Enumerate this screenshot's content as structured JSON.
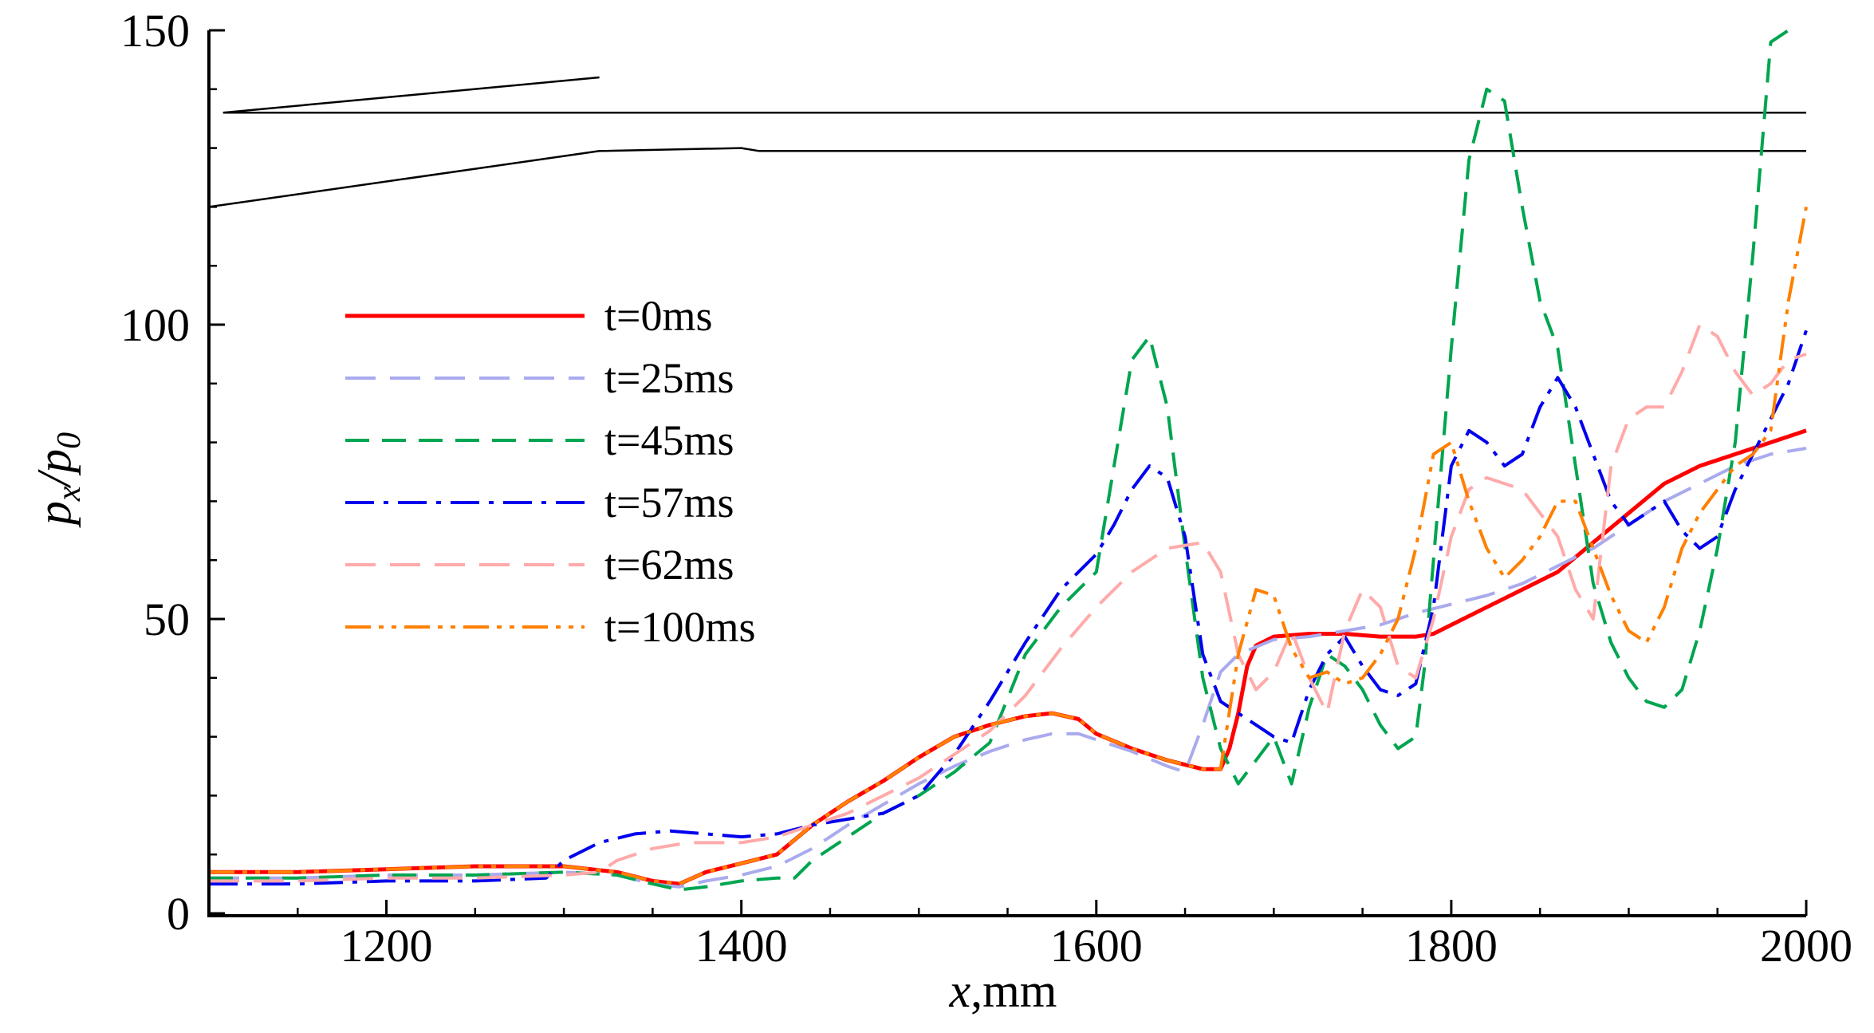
{
  "chart_data": {
    "type": "line",
    "title": "",
    "xlabel": {
      "var": "x",
      "unit": ",mm"
    },
    "ylabel": {
      "main": "p",
      "sub1": "x",
      "sep": "/",
      "sub2": "0"
    },
    "xlim": [
      1100,
      2000
    ],
    "ylim": [
      0,
      150
    ],
    "xticks": [
      1200,
      1400,
      1600,
      1800,
      2000
    ],
    "yticks": [
      0,
      50,
      100,
      150
    ],
    "grid": false,
    "legend_position": "left-center",
    "geometry_outline": [
      {
        "name": "outline-line-1",
        "color": "#000000",
        "x": [
          1108,
          1320
        ],
        "y": [
          136,
          142
        ]
      },
      {
        "name": "outline-line-2",
        "color": "#000000",
        "x": [
          1108,
          2000
        ],
        "y": [
          136,
          136
        ]
      },
      {
        "name": "outline-line-3",
        "color": "#000000",
        "x": [
          1100,
          1320,
          1400,
          1410,
          2000
        ],
        "y": [
          120,
          129.5,
          130,
          129.5,
          129.5
        ]
      }
    ],
    "series": [
      {
        "name": "t=0ms",
        "color": "#ff0000",
        "dash": "solid",
        "width": 5,
        "x": [
          1100,
          1150,
          1200,
          1250,
          1300,
          1330,
          1350,
          1365,
          1380,
          1400,
          1420,
          1440,
          1460,
          1480,
          1500,
          1520,
          1540,
          1560,
          1575,
          1590,
          1600,
          1620,
          1640,
          1660,
          1670,
          1675,
          1680,
          1685,
          1690,
          1700,
          1720,
          1740,
          1760,
          1780,
          1790,
          1800,
          1820,
          1840,
          1860,
          1880,
          1900,
          1920,
          1940,
          1960,
          1980,
          2000
        ],
        "y": [
          7,
          7,
          7.5,
          8,
          8,
          7,
          5.5,
          5,
          7,
          8.5,
          10,
          15,
          19,
          22.5,
          26.5,
          30,
          32,
          33.5,
          34,
          33,
          30.5,
          28,
          26,
          24.5,
          24.5,
          28,
          34,
          42,
          45.5,
          47,
          47.5,
          47.5,
          47,
          47,
          47.5,
          49,
          52,
          55,
          58,
          63,
          68,
          73,
          76,
          78,
          80,
          82
        ]
      },
      {
        "name": "t=25ms",
        "color": "#aaaaee",
        "dash": "38,18",
        "width": 4,
        "x": [
          1100,
          1150,
          1200,
          1250,
          1300,
          1330,
          1350,
          1365,
          1380,
          1400,
          1420,
          1440,
          1460,
          1480,
          1500,
          1520,
          1540,
          1560,
          1575,
          1590,
          1600,
          1620,
          1640,
          1650,
          1660,
          1670,
          1680,
          1700,
          1720,
          1740,
          1760,
          1780,
          1800,
          1820,
          1840,
          1860,
          1880,
          1900,
          1920,
          1940,
          1960,
          1980,
          2000
        ],
        "y": [
          6,
          6,
          6.5,
          6.5,
          7,
          6.5,
          5,
          4.5,
          5.5,
          6.5,
          8,
          11,
          15,
          18.5,
          22,
          25,
          27.5,
          29.5,
          30.5,
          30.5,
          29.5,
          27.5,
          25,
          24,
          32,
          41,
          44,
          46.5,
          47,
          48,
          49,
          51,
          52.5,
          54,
          56,
          59,
          62,
          66,
          70,
          73,
          76,
          78,
          79
        ]
      },
      {
        "name": "t=45ms",
        "color": "#00a550",
        "dash": "30,16",
        "width": 4,
        "x": [
          1100,
          1150,
          1200,
          1250,
          1300,
          1330,
          1350,
          1365,
          1380,
          1400,
          1420,
          1430,
          1440,
          1460,
          1480,
          1500,
          1520,
          1540,
          1560,
          1580,
          1600,
          1610,
          1620,
          1630,
          1640,
          1650,
          1660,
          1670,
          1680,
          1690,
          1700,
          1710,
          1720,
          1730,
          1740,
          1750,
          1760,
          1770,
          1780,
          1785,
          1790,
          1800,
          1810,
          1820,
          1830,
          1840,
          1850,
          1860,
          1870,
          1880,
          1890,
          1900,
          1910,
          1920,
          1930,
          1940,
          1950,
          1960,
          1970,
          1980,
          1990
        ],
        "y": [
          6,
          6,
          6.5,
          6.5,
          7,
          6.5,
          5,
          4,
          4.5,
          5.5,
          6,
          6,
          9,
          13,
          17,
          20,
          24,
          29,
          44,
          52,
          58,
          76,
          94,
          98,
          86,
          62,
          40,
          28,
          22,
          26,
          30,
          22,
          35,
          44,
          42,
          38,
          32,
          28,
          30,
          42,
          60,
          96,
          128,
          140,
          138,
          120,
          104,
          96,
          76,
          56,
          46,
          40,
          36,
          35,
          38,
          48,
          62,
          80,
          112,
          148,
          150
        ]
      },
      {
        "name": "t=57ms",
        "color": "#0000ee",
        "dash": "36,12,6,12",
        "width": 4,
        "x": [
          1100,
          1150,
          1200,
          1250,
          1290,
          1300,
          1320,
          1340,
          1360,
          1380,
          1400,
          1420,
          1440,
          1460,
          1480,
          1500,
          1520,
          1540,
          1560,
          1580,
          1600,
          1610,
          1620,
          1630,
          1640,
          1650,
          1660,
          1670,
          1680,
          1690,
          1700,
          1710,
          1720,
          1730,
          1740,
          1750,
          1760,
          1770,
          1780,
          1790,
          1800,
          1810,
          1820,
          1830,
          1840,
          1850,
          1860,
          1870,
          1880,
          1890,
          1900,
          1910,
          1920,
          1930,
          1940,
          1950,
          1960,
          1970,
          1980,
          1990,
          2000
        ],
        "y": [
          5,
          5,
          5.5,
          5.5,
          6,
          9,
          12,
          13.5,
          14,
          13.5,
          13,
          13.5,
          15,
          16,
          17,
          20,
          27,
          36,
          46,
          55,
          61,
          66,
          72,
          76,
          74,
          64,
          44,
          36,
          34,
          32,
          30,
          29,
          38,
          44,
          47,
          42,
          38,
          37,
          39,
          52,
          76,
          82,
          80,
          76,
          78,
          86,
          91,
          86,
          78,
          70,
          66,
          68,
          70,
          65,
          62,
          64,
          72,
          78,
          84,
          90,
          99
        ]
      },
      {
        "name": "t=62ms",
        "color": "#ffaaaa",
        "dash": "38,18",
        "width": 4,
        "x": [
          1100,
          1150,
          1200,
          1250,
          1300,
          1320,
          1330,
          1350,
          1370,
          1400,
          1420,
          1440,
          1460,
          1480,
          1500,
          1520,
          1540,
          1560,
          1580,
          1600,
          1620,
          1640,
          1660,
          1670,
          1680,
          1690,
          1700,
          1710,
          1720,
          1730,
          1740,
          1750,
          1760,
          1770,
          1780,
          1790,
          1800,
          1810,
          1820,
          1840,
          1860,
          1870,
          1880,
          1890,
          1900,
          1910,
          1920,
          1930,
          1940,
          1950,
          1960,
          1970,
          1980,
          1990,
          2000
        ],
        "y": [
          5.5,
          5.5,
          6,
          6,
          6.5,
          7,
          9,
          11,
          12,
          12,
          13,
          15,
          17,
          20,
          23,
          27,
          31,
          37,
          45,
          52,
          58,
          62,
          63,
          58,
          44,
          38,
          41,
          48,
          40,
          34,
          48,
          55,
          52,
          42,
          40,
          50,
          64,
          72,
          74,
          72,
          64,
          55,
          50,
          76,
          84,
          86,
          86,
          92,
          100,
          98,
          92,
          88,
          90,
          94,
          95
        ]
      },
      {
        "name": "t=100ms",
        "color": "#ff8000",
        "dash": "32,10,6,10,6,10",
        "width": 4,
        "x": [
          1100,
          1150,
          1200,
          1250,
          1300,
          1330,
          1350,
          1365,
          1380,
          1400,
          1420,
          1440,
          1460,
          1480,
          1500,
          1520,
          1540,
          1560,
          1575,
          1590,
          1600,
          1620,
          1640,
          1660,
          1670,
          1680,
          1690,
          1700,
          1710,
          1720,
          1730,
          1740,
          1750,
          1760,
          1770,
          1780,
          1790,
          1800,
          1810,
          1820,
          1830,
          1840,
          1850,
          1860,
          1870,
          1880,
          1890,
          1900,
          1910,
          1920,
          1930,
          1940,
          1950,
          1960,
          1970,
          1980,
          1990,
          2000
        ],
        "y": [
          7,
          7,
          7.5,
          8,
          8,
          7,
          5.5,
          5,
          7,
          8.5,
          10,
          15,
          19,
          22.5,
          26.5,
          30,
          32,
          33.5,
          34,
          33,
          30.5,
          28,
          26,
          24.5,
          24.5,
          44,
          55,
          54,
          45,
          40,
          41,
          39,
          40,
          44,
          50,
          62,
          78,
          80,
          70,
          62,
          57,
          60,
          64,
          70,
          70,
          62,
          54,
          48,
          46,
          52,
          62,
          68,
          72,
          76,
          78,
          82,
          104,
          120
        ]
      }
    ]
  }
}
